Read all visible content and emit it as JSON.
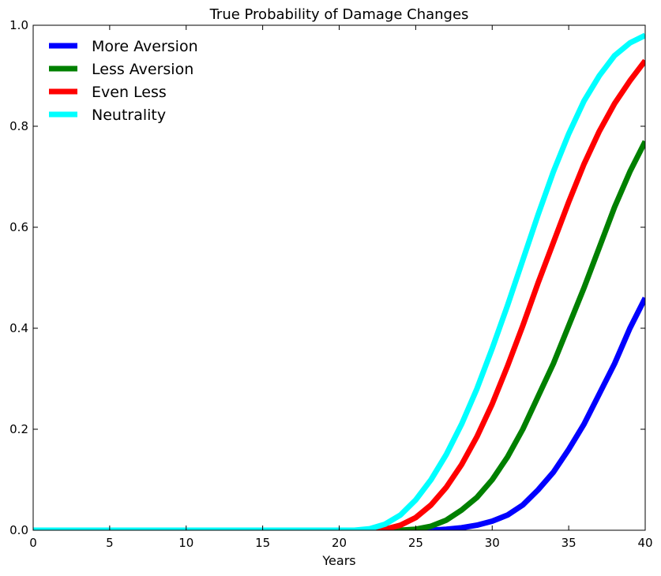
{
  "chart_data": {
    "type": "line",
    "title": "True Probability of Damage Changes",
    "xlabel": "Years",
    "ylabel": "",
    "xlim": [
      0,
      40
    ],
    "ylim": [
      0,
      1.0
    ],
    "xticks": [
      0,
      5,
      10,
      15,
      20,
      25,
      30,
      35,
      40
    ],
    "yticks": [
      0.0,
      0.2,
      0.4,
      0.6,
      0.8,
      1.0
    ],
    "xtick_labels": [
      "0",
      "5",
      "10",
      "15",
      "20",
      "25",
      "30",
      "35",
      "40"
    ],
    "ytick_labels": [
      "0.0",
      "0.2",
      "0.4",
      "0.6",
      "0.8",
      "1.0"
    ],
    "legend_position": "top-left",
    "grid": false,
    "series": [
      {
        "name": "More Aversion",
        "color": "#0000ff",
        "x": [
          0,
          20,
          25,
          26,
          27,
          28,
          29,
          30,
          31,
          32,
          33,
          34,
          35,
          36,
          37,
          38,
          39,
          40
        ],
        "y": [
          0,
          0,
          0.0,
          0.0,
          0.002,
          0.005,
          0.01,
          0.018,
          0.03,
          0.05,
          0.08,
          0.115,
          0.16,
          0.21,
          0.27,
          0.33,
          0.4,
          0.46
        ]
      },
      {
        "name": "Less Aversion",
        "color": "#008000",
        "x": [
          0,
          20,
          24,
          25,
          26,
          27,
          28,
          29,
          30,
          31,
          32,
          33,
          34,
          35,
          36,
          37,
          38,
          39,
          40
        ],
        "y": [
          0,
          0,
          0.0,
          0.002,
          0.008,
          0.02,
          0.04,
          0.065,
          0.1,
          0.145,
          0.2,
          0.265,
          0.33,
          0.405,
          0.48,
          0.56,
          0.64,
          0.71,
          0.77
        ]
      },
      {
        "name": "Even Less",
        "color": "#ff0000",
        "x": [
          0,
          20,
          22.5,
          23,
          24,
          25,
          26,
          27,
          28,
          29,
          30,
          31,
          32,
          33,
          34,
          35,
          36,
          37,
          38,
          39,
          40
        ],
        "y": [
          0,
          0,
          0.0,
          0.002,
          0.01,
          0.025,
          0.05,
          0.085,
          0.13,
          0.185,
          0.25,
          0.325,
          0.405,
          0.49,
          0.57,
          0.65,
          0.725,
          0.79,
          0.845,
          0.89,
          0.93
        ]
      },
      {
        "name": "Neutrality",
        "color": "#00ffff",
        "x": [
          0,
          20,
          21,
          22,
          23,
          24,
          25,
          26,
          27,
          28,
          29,
          30,
          31,
          32,
          33,
          34,
          35,
          36,
          37,
          38,
          39,
          40
        ],
        "y": [
          0,
          0,
          0.0,
          0.003,
          0.012,
          0.03,
          0.06,
          0.1,
          0.15,
          0.21,
          0.28,
          0.36,
          0.445,
          0.535,
          0.625,
          0.71,
          0.785,
          0.85,
          0.9,
          0.94,
          0.965,
          0.98
        ]
      }
    ]
  }
}
